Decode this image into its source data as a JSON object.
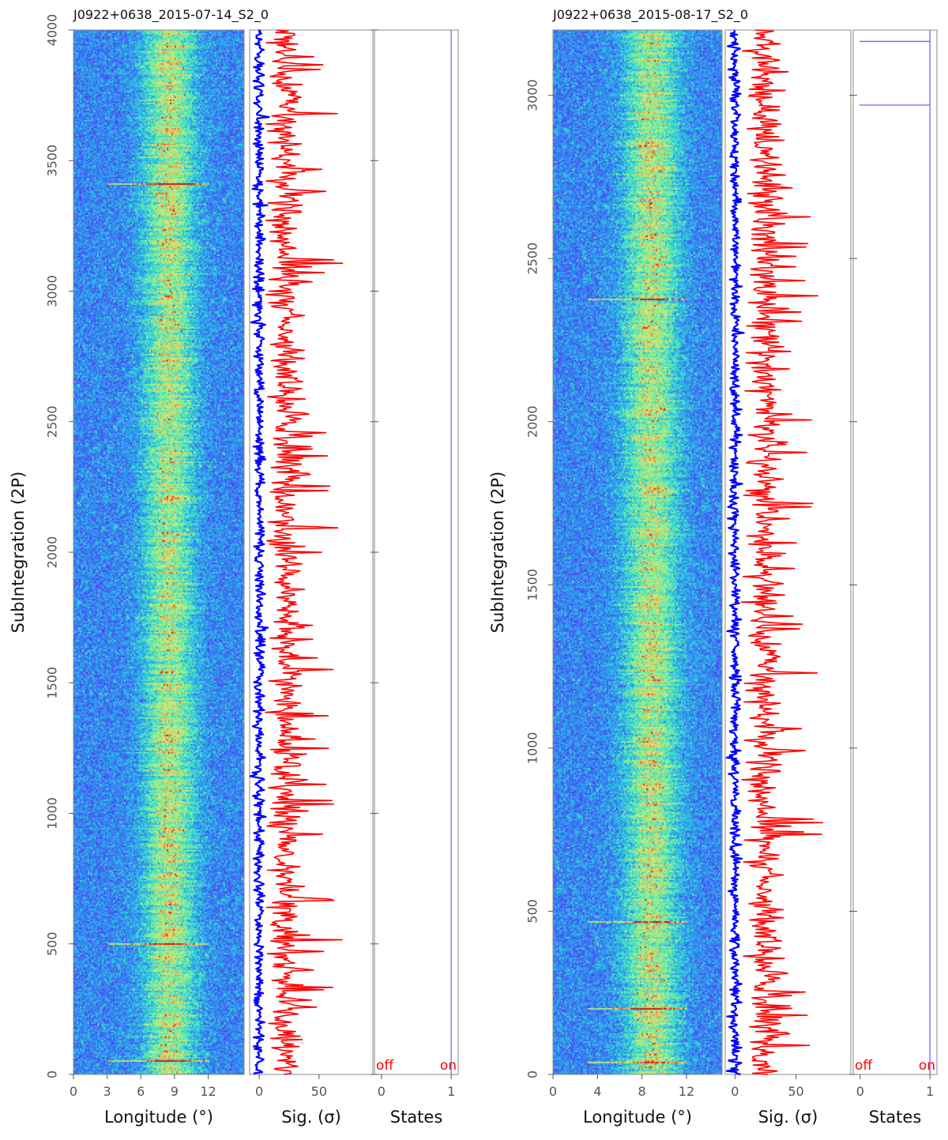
{
  "chart_data": [
    {
      "id": "left",
      "type": "heatmap",
      "title": "J0922+0638_2015-07-14_S2_0",
      "ylabel": "SubIntegration (2P)",
      "ylim": [
        0,
        4000
      ],
      "yticks": [
        0,
        500,
        1000,
        1500,
        2000,
        2500,
        3000,
        3500,
        4000
      ],
      "panels": [
        {
          "name": "longitude",
          "type": "heatmap",
          "xlabel": "Longitude (°)",
          "xlim": [
            0,
            15.2
          ],
          "xticks": [
            0,
            3,
            6,
            9,
            12
          ],
          "pulse_center_deg": 8.5,
          "pulse_width_deg": 2.8,
          "colormap": "rainbow"
        },
        {
          "name": "significance",
          "type": "line",
          "xlabel": "Sig. (σ)",
          "xlim": [
            -8,
            95
          ],
          "xticks": [
            0,
            50
          ],
          "series": [
            {
              "name": "off-pulse",
              "color": "#0000ff",
              "mean": 0
            },
            {
              "name": "on-pulse",
              "color": "#ff0000",
              "mean": 22
            }
          ]
        },
        {
          "name": "states",
          "type": "line",
          "xlabel": "States",
          "xlim": [
            -0.1,
            1.1
          ],
          "xticks": [
            0,
            1
          ],
          "off_label": "off",
          "on_label": "on",
          "state_value": 1,
          "line_color": "#6a6aff"
        }
      ]
    },
    {
      "id": "right",
      "type": "heatmap",
      "title": "J0922+0638_2015-08-17_S2_0",
      "ylabel": "SubIntegration (2P)",
      "ylim": [
        0,
        3200
      ],
      "yticks": [
        0,
        500,
        1000,
        1500,
        2000,
        2500,
        3000
      ],
      "panels": [
        {
          "name": "longitude",
          "type": "heatmap",
          "xlabel": "Longitude (°)",
          "xlim": [
            0,
            15.2
          ],
          "xticks": [
            0,
            4,
            8,
            12
          ],
          "pulse_center_deg": 8.8,
          "pulse_width_deg": 3.0,
          "colormap": "rainbow"
        },
        {
          "name": "significance",
          "type": "line",
          "xlabel": "Sig. (σ)",
          "xlim": [
            -8,
            95
          ],
          "xticks": [
            0,
            50
          ],
          "series": [
            {
              "name": "off-pulse",
              "color": "#0000ff",
              "mean": 0
            },
            {
              "name": "on-pulse",
              "color": "#ff0000",
              "mean": 24
            }
          ]
        },
        {
          "name": "states",
          "type": "line",
          "xlabel": "States",
          "xlim": [
            -0.1,
            1.1
          ],
          "xticks": [
            0,
            1
          ],
          "off_label": "off",
          "on_label": "on",
          "state_value": 1,
          "state_marks": [
            2970,
            3165
          ],
          "line_color": "#6a6aff"
        }
      ]
    }
  ]
}
